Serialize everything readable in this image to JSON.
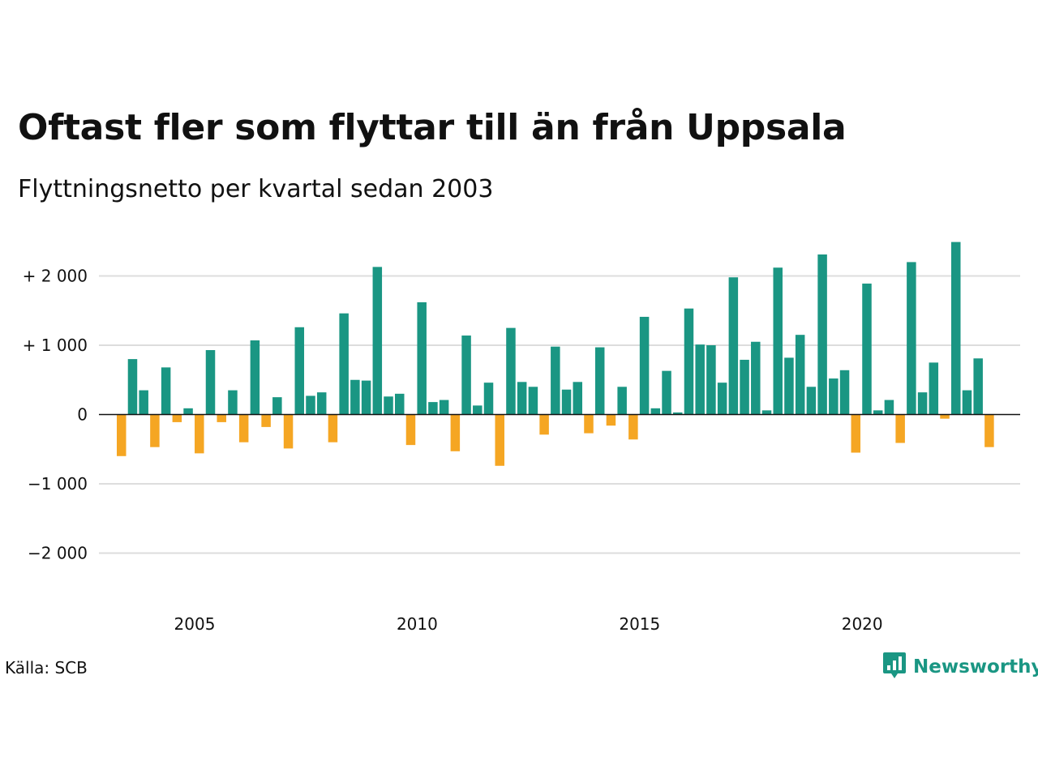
{
  "title": "Oftast fler som flyttar till än från Uppsala",
  "subtitle": "Flyttningsnetto per kvartal sedan 2003",
  "source": "Källa: SCB",
  "brand": {
    "name": "Newsworthy",
    "icon": "speech-bubble-bar-chart-icon"
  },
  "colors": {
    "positive": "#1a9683",
    "negative": "#f5a623",
    "grid": "#dddddd",
    "zero_line": "#111111",
    "brand": "#1a9683"
  },
  "chart_data": {
    "type": "bar",
    "title": "Oftast fler som flyttar till än från Uppsala",
    "subtitle": "Flyttningsnetto per kvartal sedan 2003",
    "xlabel": "",
    "ylabel": "",
    "ylim": [
      -2500,
      2600
    ],
    "yticks": [
      2000,
      1000,
      0,
      -1000,
      -2000
    ],
    "ytick_labels": [
      "+ 2 000",
      "+ 1 000",
      "0",
      "−1 000",
      "−2 000"
    ],
    "xticks": [
      2005,
      2010,
      2015,
      2020
    ],
    "xtick_labels": [
      "2005",
      "2010",
      "2015",
      "2020"
    ],
    "grid": true,
    "legend": "none",
    "start": "2003 Q2",
    "frequency": "quarterly",
    "values": [
      -600,
      800,
      350,
      -470,
      680,
      -110,
      90,
      -560,
      930,
      -110,
      350,
      -400,
      1070,
      -180,
      250,
      -490,
      1260,
      270,
      320,
      -400,
      1460,
      500,
      490,
      2130,
      260,
      300,
      -440,
      1620,
      180,
      210,
      -530,
      1140,
      130,
      460,
      -740,
      1250,
      470,
      400,
      -290,
      980,
      360,
      470,
      -270,
      970,
      -160,
      400,
      -360,
      1410,
      90,
      630,
      30,
      1530,
      1010,
      1000,
      460,
      1980,
      790,
      1050,
      60,
      2120,
      820,
      1150,
      400,
      2310,
      520,
      640,
      -550,
      1890,
      60,
      210,
      -410,
      2200,
      320,
      750,
      -60,
      2490,
      350,
      810,
      -470
    ]
  }
}
